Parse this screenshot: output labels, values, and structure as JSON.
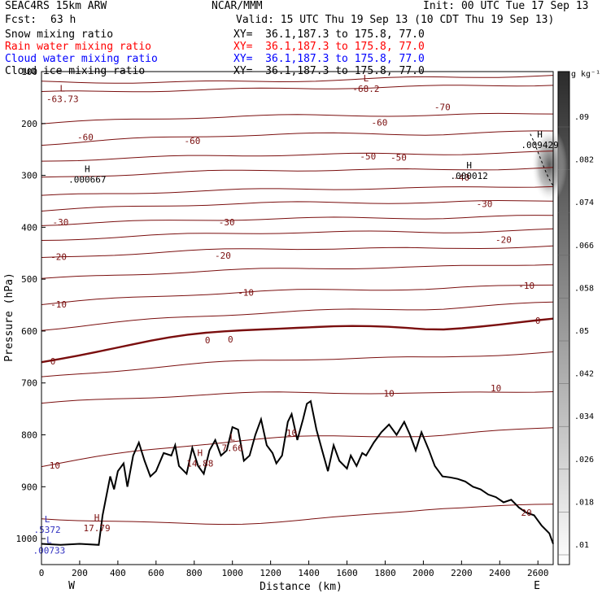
{
  "header": {
    "model": "SEAC4RS 15km ARW",
    "org": "NCAR/MMM",
    "init": "Init: 00 UTC Tue 17 Sep 13",
    "fcst_label": "Fcst:",
    "fcst_value": "63 h",
    "valid": "Valid: 15 UTC Thu 19 Sep 13 (10 CDT Thu 19 Sep 13)"
  },
  "legend": [
    {
      "label": "Snow mixing ratio",
      "xy": "XY=  36.1,187.3 to 175.8, 77.0",
      "color": "#000000"
    },
    {
      "label": "Rain water mixing ratio",
      "xy": "XY=  36.1,187.3 to 175.8, 77.0",
      "color": "#ff0000"
    },
    {
      "label": "Cloud water mixing ratio",
      "xy": "XY=  36.1,187.3 to 175.8, 77.0",
      "color": "#0000ff"
    },
    {
      "label": "Cloud ice mixing ratio",
      "xy": "XY=  36.1,187.3 to 175.8, 77.0",
      "color": "#000000"
    }
  ],
  "chart_data": {
    "type": "cross-section contour",
    "xlabel": "Distance (km)",
    "ylabel": "Pressure (hPa)",
    "xlim": [
      0,
      2680
    ],
    "ylim": [
      100,
      1050
    ],
    "x_ticks": [
      0,
      200,
      400,
      600,
      800,
      1000,
      1200,
      1400,
      1600,
      1800,
      2000,
      2200,
      2400,
      2600
    ],
    "y_ticks": [
      100,
      200,
      300,
      400,
      500,
      600,
      700,
      800,
      900,
      1000
    ],
    "x_tick_labels": [
      "0",
      "200",
      "400",
      "600",
      "800",
      "1000",
      "1200",
      "1400",
      "1600",
      "1800",
      "2000",
      "2200",
      "2400",
      "2600"
    ],
    "y_tick_labels": [
      "100",
      "200",
      "300",
      "400",
      "500",
      "600",
      "700",
      "800",
      "900",
      "1000"
    ],
    "direction_labels": {
      "left": "W",
      "right": "E"
    },
    "colorbar": {
      "unit": "g kg⁻¹",
      "ticks": [
        ".01",
        ".018",
        ".026",
        ".034",
        ".042",
        ".05",
        ".058",
        ".066",
        ".074",
        ".082",
        ".09"
      ]
    },
    "temperature_contours_c": {
      "levels": [
        -70,
        -60,
        -50,
        -40,
        -30,
        -20,
        -10,
        0,
        10,
        20
      ],
      "labels": [
        {
          "x": 2100,
          "p": 168,
          "text": "-70"
        },
        {
          "x": 230,
          "p": 226,
          "text": "-60"
        },
        {
          "x": 790,
          "p": 233,
          "text": "-60"
        },
        {
          "x": 1770,
          "p": 198,
          "text": "-60"
        },
        {
          "x": 1710,
          "p": 263,
          "text": "-50"
        },
        {
          "x": 1870,
          "p": 265,
          "text": "-50"
        },
        {
          "x": 2200,
          "p": 304,
          "text": "-40"
        },
        {
          "x": 2320,
          "p": 355,
          "text": "-30"
        },
        {
          "x": 100,
          "p": 390,
          "text": "-30"
        },
        {
          "x": 970,
          "p": 390,
          "text": "-30"
        },
        {
          "x": 2420,
          "p": 424,
          "text": "-20"
        },
        {
          "x": 90,
          "p": 457,
          "text": "-20"
        },
        {
          "x": 950,
          "p": 454,
          "text": "-20"
        },
        {
          "x": 2540,
          "p": 512,
          "text": "-10"
        },
        {
          "x": 90,
          "p": 548,
          "text": "-10"
        },
        {
          "x": 1070,
          "p": 526,
          "text": "-10"
        },
        {
          "x": 2600,
          "p": 580,
          "text": "0"
        },
        {
          "x": 60,
          "p": 658,
          "text": "0"
        },
        {
          "x": 870,
          "p": 617,
          "text": "0"
        },
        {
          "x": 990,
          "p": 616,
          "text": "0"
        },
        {
          "x": 1820,
          "p": 720,
          "text": "10"
        },
        {
          "x": 2380,
          "p": 710,
          "text": "10"
        },
        {
          "x": 1310,
          "p": 796,
          "text": "10"
        },
        {
          "x": 70,
          "p": 859,
          "text": "10"
        },
        {
          "x": 2540,
          "p": 950,
          "text": "20"
        }
      ]
    },
    "extrema": [
      {
        "kind": "L",
        "value": "-63.73",
        "x": 110,
        "p": 148
      },
      {
        "kind": "L",
        "value": "-68.2",
        "x": 1700,
        "p": 128
      },
      {
        "kind": "H",
        "value": ".000667",
        "x": 240,
        "p": 303
      },
      {
        "kind": "H",
        "value": ".000012",
        "x": 2240,
        "p": 296
      },
      {
        "kind": "H",
        "value": ".009429",
        "x": 2610,
        "p": 236
      },
      {
        "kind": "L",
        "value": "7.66",
        "x": 1000,
        "p": 820
      },
      {
        "kind": "H",
        "value": "14.88",
        "x": 830,
        "p": 850
      },
      {
        "kind": "H",
        "value": "17.79",
        "x": 290,
        "p": 975
      },
      {
        "kind": "L",
        "value": ".5372",
        "x": 30,
        "p": 978
      },
      {
        "kind": "L",
        "value": ".00733",
        "x": 40,
        "p": 1018
      }
    ],
    "terrain_surface": {
      "x": [
        0,
        100,
        200,
        300,
        320,
        360,
        380,
        400,
        430,
        450,
        480,
        510,
        540,
        570,
        600,
        640,
        680,
        700,
        720,
        760,
        790,
        820,
        850,
        880,
        910,
        940,
        970,
        1000,
        1030,
        1060,
        1090,
        1120,
        1150,
        1180,
        1210,
        1230,
        1260,
        1290,
        1310,
        1340,
        1370,
        1390,
        1410,
        1440,
        1470,
        1500,
        1530,
        1560,
        1600,
        1620,
        1650,
        1680,
        1700,
        1740,
        1780,
        1820,
        1860,
        1900,
        1930,
        1960,
        1990,
        2030,
        2060,
        2100,
        2140,
        2180,
        2220,
        2260,
        2300,
        2340,
        2380,
        2420,
        2460,
        2500,
        2540,
        2580,
        2620,
        2660,
        2680
      ],
      "p": [
        1010,
        1012,
        1010,
        1012,
        955,
        880,
        905,
        870,
        855,
        900,
        840,
        815,
        850,
        880,
        870,
        835,
        840,
        820,
        860,
        875,
        825,
        860,
        875,
        830,
        810,
        840,
        830,
        785,
        790,
        850,
        840,
        800,
        770,
        820,
        835,
        855,
        840,
        775,
        760,
        810,
        770,
        740,
        735,
        790,
        830,
        870,
        820,
        850,
        865,
        840,
        860,
        835,
        840,
        815,
        795,
        780,
        800,
        775,
        800,
        830,
        795,
        830,
        860,
        880,
        882,
        885,
        890,
        900,
        905,
        915,
        920,
        930,
        925,
        940,
        950,
        955,
        975,
        990,
        1010
      ]
    }
  }
}
